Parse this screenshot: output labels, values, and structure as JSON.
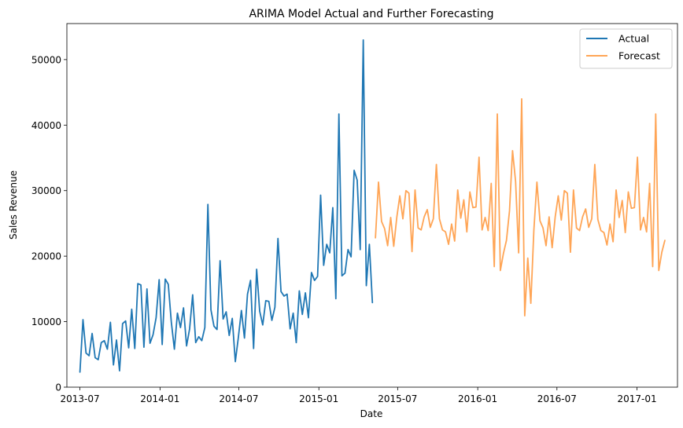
{
  "chart_data": {
    "type": "line",
    "title": "ARIMA Model Actual and Further Forecasting",
    "xlabel": "Date",
    "ylabel": "Sales Revenue",
    "xlim": [
      "2013-06-01",
      "2017-04-04"
    ],
    "ylim": [
      0,
      55500
    ],
    "x_ticks": [
      {
        "date": "2013-07-01",
        "label": "2013-07"
      },
      {
        "date": "2014-01-01",
        "label": "2014-01"
      },
      {
        "date": "2014-07-01",
        "label": "2014-07"
      },
      {
        "date": "2015-01-01",
        "label": "2015-01"
      },
      {
        "date": "2015-07-01",
        "label": "2015-07"
      },
      {
        "date": "2016-01-01",
        "label": "2016-01"
      },
      {
        "date": "2016-07-01",
        "label": "2016-07"
      },
      {
        "date": "2017-01-01",
        "label": "2017-01"
      }
    ],
    "y_ticks": [
      0,
      10000,
      20000,
      30000,
      40000,
      50000
    ],
    "grid": false,
    "legend": "top-right",
    "series": [
      {
        "name": "Actual",
        "color": "#1f77b4",
        "points": [
          [
            "2013-07-01",
            2300
          ],
          [
            "2013-07-08",
            10300
          ],
          [
            "2013-07-15",
            5200
          ],
          [
            "2013-07-22",
            4800
          ],
          [
            "2013-07-29",
            8200
          ],
          [
            "2013-08-05",
            4500
          ],
          [
            "2013-08-12",
            4200
          ],
          [
            "2013-08-19",
            6800
          ],
          [
            "2013-08-26",
            7100
          ],
          [
            "2013-09-02",
            5800
          ],
          [
            "2013-09-09",
            9900
          ],
          [
            "2013-09-16",
            3400
          ],
          [
            "2013-09-23",
            7200
          ],
          [
            "2013-09-30",
            2500
          ],
          [
            "2013-10-07",
            9700
          ],
          [
            "2013-10-14",
            10100
          ],
          [
            "2013-10-21",
            6000
          ],
          [
            "2013-10-28",
            11900
          ],
          [
            "2013-11-04",
            5900
          ],
          [
            "2013-11-11",
            15800
          ],
          [
            "2013-11-18",
            15600
          ],
          [
            "2013-11-25",
            6100
          ],
          [
            "2013-12-02",
            15000
          ],
          [
            "2013-12-09",
            6700
          ],
          [
            "2013-12-16",
            8000
          ],
          [
            "2013-12-23",
            10600
          ],
          [
            "2013-12-30",
            16400
          ],
          [
            "2014-01-06",
            6500
          ],
          [
            "2014-01-13",
            16500
          ],
          [
            "2014-01-20",
            15700
          ],
          [
            "2014-01-27",
            9900
          ],
          [
            "2014-02-03",
            5800
          ],
          [
            "2014-02-10",
            11300
          ],
          [
            "2014-02-17",
            9100
          ],
          [
            "2014-02-24",
            12100
          ],
          [
            "2014-03-03",
            6300
          ],
          [
            "2014-03-10",
            8900
          ],
          [
            "2014-03-17",
            14100
          ],
          [
            "2014-03-24",
            6800
          ],
          [
            "2014-03-31",
            7700
          ],
          [
            "2014-04-07",
            7100
          ],
          [
            "2014-04-14",
            9100
          ],
          [
            "2014-04-21",
            27900
          ],
          [
            "2014-04-28",
            11800
          ],
          [
            "2014-05-05",
            9300
          ],
          [
            "2014-05-12",
            8800
          ],
          [
            "2014-05-19",
            19300
          ],
          [
            "2014-05-26",
            10400
          ],
          [
            "2014-06-02",
            11500
          ],
          [
            "2014-06-09",
            7900
          ],
          [
            "2014-06-16",
            10500
          ],
          [
            "2014-06-23",
            3900
          ],
          [
            "2014-06-30",
            7600
          ],
          [
            "2014-07-07",
            11700
          ],
          [
            "2014-07-14",
            7500
          ],
          [
            "2014-07-21",
            14200
          ],
          [
            "2014-07-28",
            16300
          ],
          [
            "2014-08-04",
            5900
          ],
          [
            "2014-08-11",
            18000
          ],
          [
            "2014-08-18",
            11600
          ],
          [
            "2014-08-25",
            9500
          ],
          [
            "2014-09-01",
            13200
          ],
          [
            "2014-09-08",
            13100
          ],
          [
            "2014-09-15",
            10200
          ],
          [
            "2014-09-22",
            12200
          ],
          [
            "2014-09-29",
            22700
          ],
          [
            "2014-10-06",
            14600
          ],
          [
            "2014-10-13",
            13900
          ],
          [
            "2014-10-20",
            14200
          ],
          [
            "2014-10-27",
            8900
          ],
          [
            "2014-11-03",
            11300
          ],
          [
            "2014-11-10",
            6800
          ],
          [
            "2014-11-17",
            14700
          ],
          [
            "2014-11-24",
            11100
          ],
          [
            "2014-12-01",
            14400
          ],
          [
            "2014-12-08",
            10600
          ],
          [
            "2014-12-15",
            17500
          ],
          [
            "2014-12-22",
            16300
          ],
          [
            "2014-12-29",
            16900
          ],
          [
            "2015-01-05",
            29300
          ],
          [
            "2015-01-12",
            18600
          ],
          [
            "2015-01-19",
            21800
          ],
          [
            "2015-01-26",
            20500
          ],
          [
            "2015-02-02",
            27400
          ],
          [
            "2015-02-09",
            13500
          ],
          [
            "2015-02-16",
            41700
          ],
          [
            "2015-02-23",
            17000
          ],
          [
            "2015-03-02",
            17400
          ],
          [
            "2015-03-09",
            21000
          ],
          [
            "2015-03-16",
            19900
          ],
          [
            "2015-03-23",
            33100
          ],
          [
            "2015-03-30",
            31600
          ],
          [
            "2015-04-06",
            21000
          ],
          [
            "2015-04-13",
            53000
          ],
          [
            "2015-04-20",
            15500
          ],
          [
            "2015-04-27",
            21800
          ],
          [
            "2015-05-04",
            12900
          ]
        ]
      },
      {
        "name": "Forecast",
        "color": "#ff7f0e",
        "points": [
          [
            "2015-05-11",
            22800
          ],
          [
            "2015-05-18",
            31300
          ],
          [
            "2015-05-25",
            25300
          ],
          [
            "2015-06-01",
            24200
          ],
          [
            "2015-06-08",
            21600
          ],
          [
            "2015-06-15",
            25900
          ],
          [
            "2015-06-22",
            21500
          ],
          [
            "2015-06-29",
            25900
          ],
          [
            "2015-07-06",
            29200
          ],
          [
            "2015-07-13",
            25700
          ],
          [
            "2015-07-20",
            30000
          ],
          [
            "2015-07-27",
            29600
          ],
          [
            "2015-08-03",
            20700
          ],
          [
            "2015-08-10",
            30100
          ],
          [
            "2015-08-17",
            24300
          ],
          [
            "2015-08-24",
            24000
          ],
          [
            "2015-08-31",
            26000
          ],
          [
            "2015-09-07",
            27100
          ],
          [
            "2015-09-14",
            24400
          ],
          [
            "2015-09-21",
            25700
          ],
          [
            "2015-09-28",
            34000
          ],
          [
            "2015-10-05",
            25700
          ],
          [
            "2015-10-12",
            24000
          ],
          [
            "2015-10-19",
            23700
          ],
          [
            "2015-10-26",
            21800
          ],
          [
            "2015-11-02",
            24900
          ],
          [
            "2015-11-09",
            22300
          ],
          [
            "2015-11-16",
            30100
          ],
          [
            "2015-11-23",
            25800
          ],
          [
            "2015-11-30",
            28600
          ],
          [
            "2015-12-07",
            23700
          ],
          [
            "2015-12-14",
            29800
          ],
          [
            "2015-12-21",
            27400
          ],
          [
            "2015-12-28",
            27500
          ],
          [
            "2016-01-04",
            35100
          ],
          [
            "2016-01-11",
            24000
          ],
          [
            "2016-01-18",
            25900
          ],
          [
            "2016-01-25",
            23900
          ],
          [
            "2016-02-01",
            31100
          ],
          [
            "2016-02-08",
            18400
          ],
          [
            "2016-02-15",
            41700
          ],
          [
            "2016-02-22",
            17800
          ],
          [
            "2016-02-29",
            20400
          ],
          [
            "2016-03-07",
            22400
          ],
          [
            "2016-03-14",
            26900
          ],
          [
            "2016-03-21",
            36100
          ],
          [
            "2016-03-28",
            31400
          ],
          [
            "2016-04-04",
            20500
          ],
          [
            "2016-04-11",
            44000
          ],
          [
            "2016-04-18",
            10900
          ],
          [
            "2016-04-25",
            19700
          ],
          [
            "2016-05-02",
            12800
          ],
          [
            "2016-05-09",
            24000
          ],
          [
            "2016-05-16",
            31300
          ],
          [
            "2016-05-23",
            25400
          ],
          [
            "2016-05-30",
            24300
          ],
          [
            "2016-06-06",
            21600
          ],
          [
            "2016-06-13",
            26000
          ],
          [
            "2016-06-20",
            21300
          ],
          [
            "2016-06-27",
            26000
          ],
          [
            "2016-07-04",
            29200
          ],
          [
            "2016-07-11",
            25500
          ],
          [
            "2016-07-18",
            30000
          ],
          [
            "2016-07-25",
            29600
          ],
          [
            "2016-08-01",
            20600
          ],
          [
            "2016-08-08",
            30100
          ],
          [
            "2016-08-15",
            24300
          ],
          [
            "2016-08-22",
            23900
          ],
          [
            "2016-08-29",
            26000
          ],
          [
            "2016-09-05",
            27200
          ],
          [
            "2016-09-12",
            24400
          ],
          [
            "2016-09-19",
            25700
          ],
          [
            "2016-09-26",
            34000
          ],
          [
            "2016-10-03",
            25600
          ],
          [
            "2016-10-10",
            23900
          ],
          [
            "2016-10-17",
            23600
          ],
          [
            "2016-10-24",
            21700
          ],
          [
            "2016-10-31",
            24900
          ],
          [
            "2016-11-07",
            22200
          ],
          [
            "2016-11-14",
            30100
          ],
          [
            "2016-11-21",
            25900
          ],
          [
            "2016-11-28",
            28500
          ],
          [
            "2016-12-05",
            23600
          ],
          [
            "2016-12-12",
            29800
          ],
          [
            "2016-12-19",
            27300
          ],
          [
            "2016-12-26",
            27400
          ],
          [
            "2017-01-02",
            35100
          ],
          [
            "2017-01-09",
            24000
          ],
          [
            "2017-01-16",
            25900
          ],
          [
            "2017-01-23",
            23700
          ],
          [
            "2017-01-30",
            31100
          ],
          [
            "2017-02-06",
            18400
          ],
          [
            "2017-02-13",
            41700
          ],
          [
            "2017-02-20",
            17800
          ],
          [
            "2017-02-27",
            20600
          ],
          [
            "2017-03-06",
            22400
          ]
        ]
      }
    ]
  }
}
